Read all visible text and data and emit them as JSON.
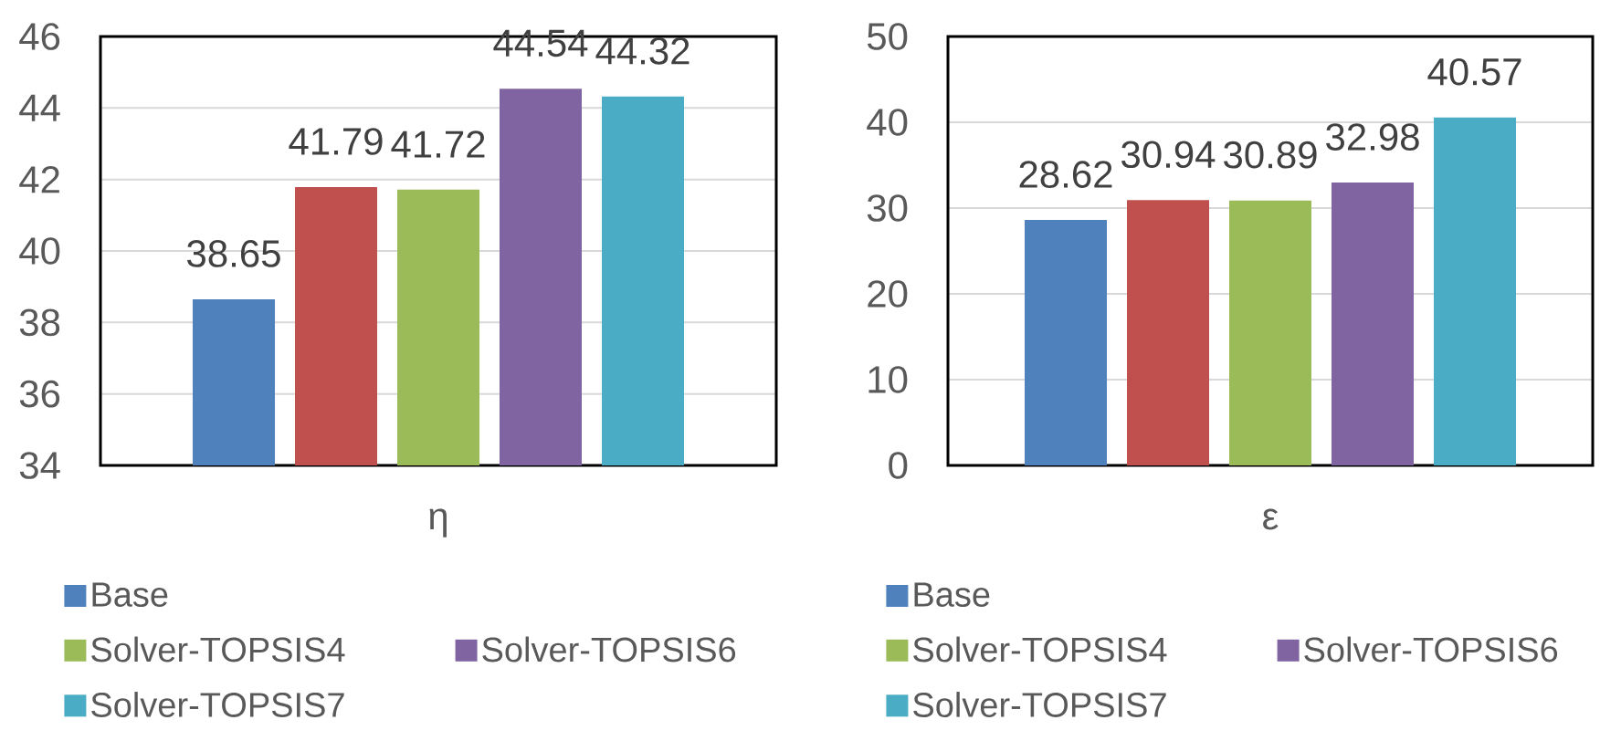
{
  "chart_data": [
    {
      "type": "bar",
      "xlabel": "η",
      "categories": [
        null
      ],
      "series": [
        {
          "name": "Base",
          "color": "#4f81bd",
          "values": [
            38.65
          ]
        },
        {
          "color": "#c0504d",
          "values": [
            41.79
          ]
        },
        {
          "name": "Solver-TOPSIS4",
          "color": "#9bbb59",
          "values": [
            41.72
          ]
        },
        {
          "name": "Solver-TOPSIS6",
          "color": "#8064a2",
          "values": [
            44.54
          ]
        },
        {
          "name": "Solver-TOPSIS7",
          "color": "#4bacc6",
          "values": [
            44.32
          ]
        }
      ],
      "ylim": [
        34,
        46
      ],
      "yticks": [
        34,
        36,
        38,
        40,
        42,
        44,
        46
      ],
      "grid": "y",
      "legend": "bottom",
      "data_labels": true
    },
    {
      "type": "bar",
      "xlabel": "ε",
      "categories": [
        null
      ],
      "series": [
        {
          "name": "Base",
          "color": "#4f81bd",
          "values": [
            28.62
          ]
        },
        {
          "color": "#c0504d",
          "values": [
            30.94
          ]
        },
        {
          "name": "Solver-TOPSIS4",
          "color": "#9bbb59",
          "values": [
            30.89
          ]
        },
        {
          "name": "Solver-TOPSIS6",
          "color": "#8064a2",
          "values": [
            32.98
          ]
        },
        {
          "name": "Solver-TOPSIS7",
          "color": "#4bacc6",
          "values": [
            40.57
          ]
        }
      ],
      "ylim": [
        0,
        50
      ],
      "yticks": [
        0,
        10,
        20,
        30,
        40,
        50
      ],
      "grid": "y",
      "legend": "bottom",
      "data_labels": true
    }
  ]
}
